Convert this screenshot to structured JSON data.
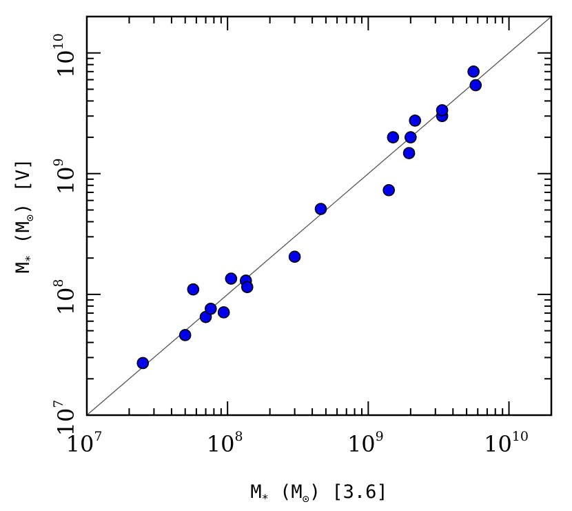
{
  "chart_data": {
    "type": "scatter",
    "title": "",
    "xlabel": "M* (M⊙) [3.6]",
    "ylabel": "M* (M⊙) [V]",
    "xlabel_parts": {
      "main": "M",
      "sub1": "*",
      "mid": " (M",
      "sub2": "⊙",
      "tail": ") [3.6]"
    },
    "ylabel_parts": {
      "main": "M",
      "sub1": "*",
      "mid": " (M",
      "sub2": "⊙",
      "tail": ") [V]"
    },
    "xscale": "log",
    "yscale": "log",
    "xlim": [
      10000000,
      20000000000
    ],
    "ylim": [
      10000000,
      20000000000
    ],
    "x_tick_labels": [
      {
        "base": "10",
        "exp": "7"
      },
      {
        "base": "10",
        "exp": "8"
      },
      {
        "base": "10",
        "exp": "9"
      },
      {
        "base": "10",
        "exp": "10"
      }
    ],
    "y_tick_labels": [
      {
        "base": "10",
        "exp": "7"
      },
      {
        "base": "10",
        "exp": "8"
      },
      {
        "base": "10",
        "exp": "9"
      },
      {
        "base": "10",
        "exp": "10"
      }
    ],
    "reference_line": "y = x",
    "grid": false,
    "marker_color": "#0000ee",
    "marker_edge": "#000000",
    "line_color": "#555555",
    "points": [
      {
        "x": 25000000,
        "y": 27000000
      },
      {
        "x": 50000000,
        "y": 46000000
      },
      {
        "x": 57000000,
        "y": 110000000
      },
      {
        "x": 70000000,
        "y": 65000000
      },
      {
        "x": 76000000,
        "y": 76000000
      },
      {
        "x": 94000000,
        "y": 71000000
      },
      {
        "x": 106000000,
        "y": 135000000
      },
      {
        "x": 135000000,
        "y": 130000000
      },
      {
        "x": 138000000,
        "y": 115000000
      },
      {
        "x": 300000000,
        "y": 205000000
      },
      {
        "x": 460000000,
        "y": 510000000
      },
      {
        "x": 1400000000,
        "y": 730000000
      },
      {
        "x": 1500000000,
        "y": 2000000000
      },
      {
        "x": 1950000000,
        "y": 1480000000
      },
      {
        "x": 2000000000,
        "y": 2000000000
      },
      {
        "x": 2150000000,
        "y": 2750000000
      },
      {
        "x": 3350000000,
        "y": 3000000000
      },
      {
        "x": 3350000000,
        "y": 3350000000
      },
      {
        "x": 5600000000,
        "y": 7000000000
      },
      {
        "x": 5800000000,
        "y": 5400000000
      }
    ]
  }
}
